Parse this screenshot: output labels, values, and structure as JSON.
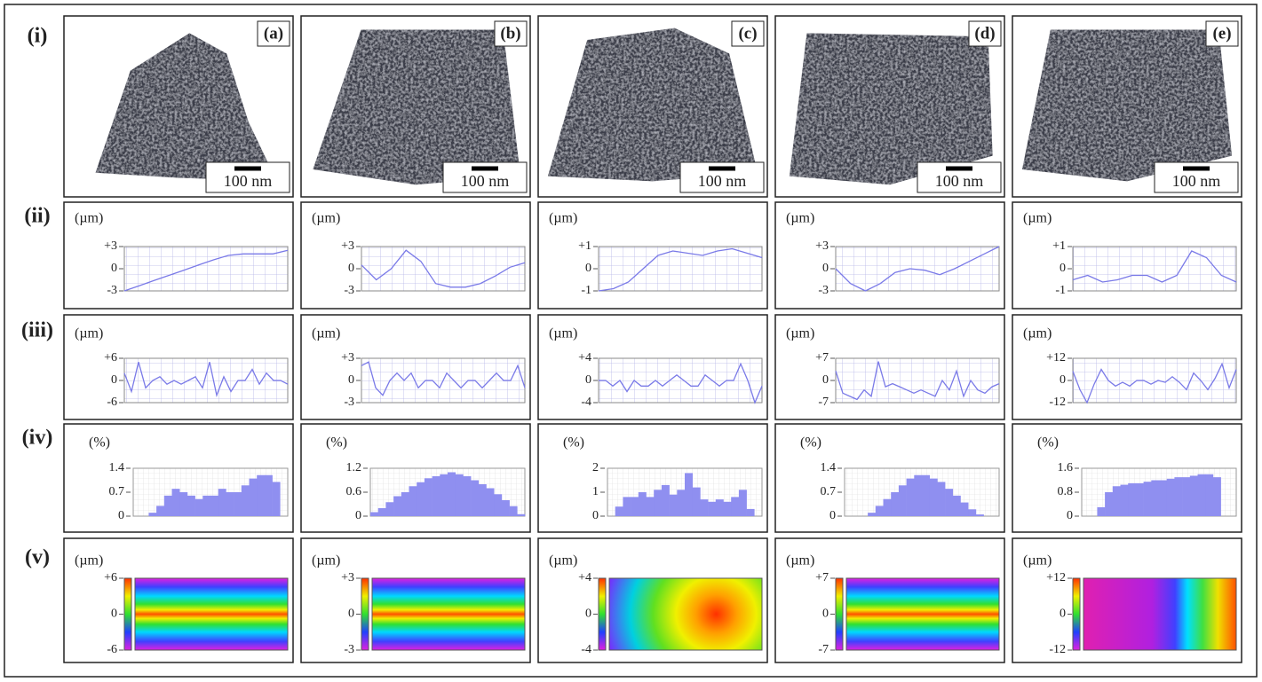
{
  "row_labels": [
    "(i)",
    "(ii)",
    "(iii)",
    "(iv)",
    "(v)"
  ],
  "columns": [
    {
      "label": "(a)",
      "scale_bar": "100 nm",
      "profile": {
        "unit": "(µm)",
        "ylim": [
          -3,
          3
        ],
        "yticks": [
          {
            "value": 3,
            "label": "+3"
          },
          0,
          -3
        ],
        "values": [
          -3,
          -2.3,
          -1.6,
          -0.9,
          -0.2,
          0.5,
          1.2,
          1.8,
          2,
          2,
          2,
          2.5
        ]
      },
      "roughness": {
        "unit": "(µm)",
        "ylim": [
          -6,
          6
        ],
        "yticks": [
          {
            "value": 6,
            "label": "+6"
          },
          0,
          -6
        ],
        "values": [
          2,
          -3,
          5,
          -2,
          0,
          1,
          -1,
          0,
          -1,
          0,
          1,
          -2,
          5,
          -4,
          1,
          -3,
          0,
          0,
          3,
          -1,
          2,
          0,
          0,
          -1
        ]
      },
      "distribution": {
        "unit": "(%)",
        "ylim": [
          0,
          1.4
        ],
        "yticks": [
          1.4,
          0.7,
          0
        ],
        "values": [
          0,
          0,
          0.1,
          0.3,
          0.6,
          0.8,
          0.7,
          0.6,
          0.5,
          0.6,
          0.6,
          0.8,
          0.7,
          0.7,
          0.9,
          1.1,
          1.2,
          1.2,
          1.0,
          0
        ]
      },
      "map": {
        "unit": "(µm)",
        "ylim": [
          -6,
          6
        ],
        "yticks": [
          {
            "value": 6,
            "label": "+6"
          },
          0,
          -6
        ]
      }
    },
    {
      "label": "(b)",
      "scale_bar": "100 nm",
      "profile": {
        "unit": "(µm)",
        "ylim": [
          -3,
          3
        ],
        "yticks": [
          {
            "value": 3,
            "label": "+3"
          },
          0,
          -3
        ],
        "values": [
          0.5,
          -1.5,
          0,
          2.5,
          1,
          -2,
          -2.5,
          -2.5,
          -2,
          -1,
          0.2,
          0.8
        ]
      },
      "roughness": {
        "unit": "(µm)",
        "ylim": [
          -3,
          3
        ],
        "yticks": [
          {
            "value": 3,
            "label": "+3"
          },
          0,
          -3
        ],
        "values": [
          2,
          2.5,
          -1,
          -2,
          0,
          1,
          0,
          1,
          -1,
          0,
          0,
          -1,
          1,
          0,
          -1,
          0,
          0,
          -1,
          0,
          1,
          0,
          0,
          2,
          -1
        ]
      },
      "distribution": {
        "unit": "(%)",
        "ylim": [
          0,
          1.2
        ],
        "yticks": [
          1.2,
          0.6,
          0
        ],
        "values": [
          0.1,
          0.2,
          0.35,
          0.5,
          0.6,
          0.75,
          0.85,
          0.95,
          1.0,
          1.05,
          1.1,
          1.05,
          1.0,
          0.9,
          0.8,
          0.7,
          0.55,
          0.4,
          0.25,
          0.05
        ]
      },
      "map": {
        "unit": "(µm)",
        "ylim": [
          -3,
          3
        ],
        "yticks": [
          {
            "value": 3,
            "label": "+3"
          },
          0,
          -3
        ]
      }
    },
    {
      "label": "(c)",
      "scale_bar": "100 nm",
      "profile": {
        "unit": "(µm)",
        "ylim": [
          -1,
          1
        ],
        "yticks": [
          {
            "value": 1,
            "label": "+1"
          },
          0,
          -1
        ],
        "values": [
          -1,
          -0.9,
          -0.6,
          0,
          0.6,
          0.8,
          0.7,
          0.6,
          0.8,
          0.9,
          0.7,
          0.5
        ]
      },
      "roughness": {
        "unit": "(µm)",
        "ylim": [
          -4,
          4
        ],
        "yticks": [
          {
            "value": 4,
            "label": "+4"
          },
          0,
          -4
        ],
        "values": [
          0,
          0,
          -1,
          0,
          -2,
          0,
          -1,
          -1,
          0,
          -1,
          0,
          1,
          0,
          -1,
          -1,
          1,
          0,
          -1,
          0,
          0,
          3,
          0,
          -4,
          -1
        ]
      },
      "distribution": {
        "unit": "(%)",
        "ylim": [
          0,
          2
        ],
        "yticks": [
          2,
          1,
          0
        ],
        "values": [
          0,
          0.4,
          0.8,
          0.8,
          1.0,
          0.8,
          1.1,
          1.3,
          0.9,
          1.1,
          1.8,
          1.2,
          0.7,
          0.6,
          0.7,
          0.6,
          0.8,
          1.1,
          0.3,
          0
        ]
      },
      "map": {
        "unit": "(µm)",
        "ylim": [
          -4,
          4
        ],
        "yticks": [
          {
            "value": 4,
            "label": "+4"
          },
          0,
          -4
        ]
      }
    },
    {
      "label": "(d)",
      "scale_bar": "100 nm",
      "profile": {
        "unit": "(µm)",
        "ylim": [
          -3,
          3
        ],
        "yticks": [
          {
            "value": 3,
            "label": "+3"
          },
          0,
          -3
        ],
        "values": [
          0,
          -2,
          -3,
          -2,
          -0.5,
          0,
          -0.2,
          -0.8,
          0,
          1,
          2,
          3
        ]
      },
      "roughness": {
        "unit": "(µm)",
        "ylim": [
          -7,
          7
        ],
        "yticks": [
          {
            "value": 7,
            "label": "+7"
          },
          0,
          -7
        ],
        "values": [
          3,
          -4,
          -5,
          -6,
          -3,
          -5,
          6,
          -2,
          -1,
          -2,
          -3,
          -4,
          -3,
          -4,
          -5,
          0,
          -3,
          3,
          -5,
          0,
          -3,
          -4,
          -2,
          -1
        ]
      },
      "distribution": {
        "unit": "(%)",
        "ylim": [
          0,
          1.4
        ],
        "yticks": [
          1.4,
          0.7,
          0
        ],
        "values": [
          0,
          0,
          0,
          0.1,
          0.3,
          0.5,
          0.7,
          0.9,
          1.1,
          1.2,
          1.2,
          1.1,
          1.0,
          0.8,
          0.6,
          0.4,
          0.2,
          0.05,
          0,
          0
        ]
      },
      "map": {
        "unit": "(µm)",
        "ylim": [
          -7,
          7
        ],
        "yticks": [
          {
            "value": 7,
            "label": "+7"
          },
          0,
          -7
        ]
      }
    },
    {
      "label": "(e)",
      "scale_bar": "100 nm",
      "profile": {
        "unit": "(µm)",
        "ylim": [
          -1,
          1
        ],
        "yticks": [
          {
            "value": 1,
            "label": "+1"
          },
          0,
          -1
        ],
        "values": [
          -0.5,
          -0.3,
          -0.6,
          -0.5,
          -0.3,
          -0.3,
          -0.6,
          -0.3,
          0.8,
          0.5,
          -0.3,
          -0.6
        ]
      },
      "roughness": {
        "unit": "(µm)",
        "ylim": [
          -12,
          12
        ],
        "yticks": [
          {
            "value": 12,
            "label": "+12"
          },
          0,
          -12
        ],
        "values": [
          5,
          -5,
          -12,
          -2,
          6,
          0,
          -3,
          -1,
          -3,
          0,
          0,
          -2,
          0,
          -1,
          2,
          -1,
          -5,
          4,
          0,
          -5,
          1,
          9,
          -4,
          6
        ]
      },
      "distribution": {
        "unit": "(%)",
        "ylim": [
          0,
          1.6
        ],
        "yticks": [
          1.6,
          0.8,
          0
        ],
        "values": [
          0,
          0,
          0.3,
          0.8,
          1.0,
          1.05,
          1.1,
          1.1,
          1.15,
          1.2,
          1.2,
          1.25,
          1.3,
          1.3,
          1.35,
          1.4,
          1.4,
          1.3,
          0,
          0
        ]
      },
      "map": {
        "unit": "(µm)",
        "ylim": [
          -12,
          12
        ],
        "yticks": [
          {
            "value": 12,
            "label": "+12"
          },
          0,
          -12
        ]
      }
    }
  ]
}
